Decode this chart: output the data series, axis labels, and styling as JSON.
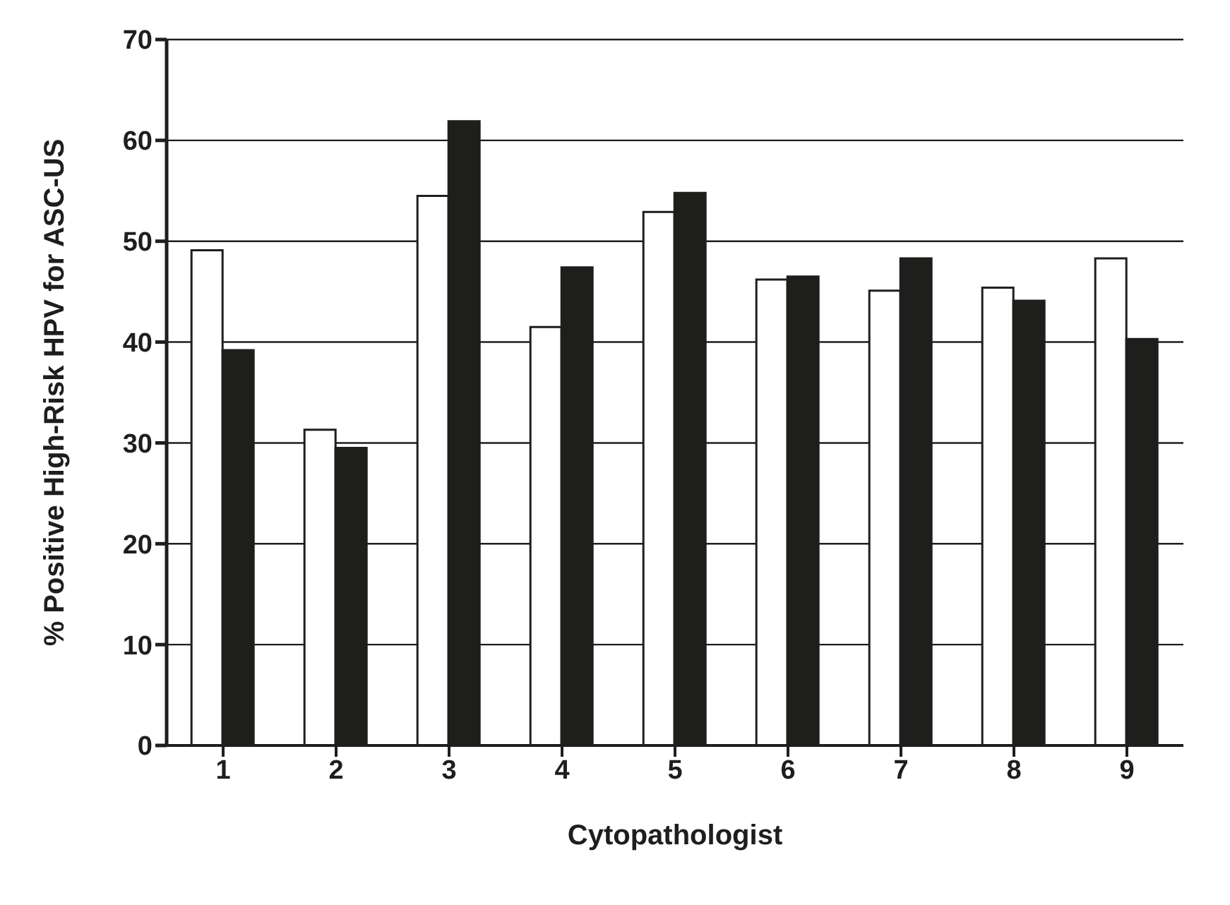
{
  "chart_data": {
    "type": "bar",
    "xlabel": "Cytopathologist",
    "ylabel": "% Positive High-Risk HPV for ASC-US",
    "categories": [
      "1",
      "2",
      "3",
      "4",
      "5",
      "6",
      "7",
      "8",
      "9"
    ],
    "series": [
      {
        "color": "#ffffff",
        "values": [
          49.1,
          31.3,
          54.5,
          41.5,
          52.9,
          46.2,
          45.1,
          45.4,
          48.3
        ]
      },
      {
        "color": "#1e1e1c",
        "values": [
          39.2,
          29.5,
          61.9,
          47.4,
          54.8,
          46.5,
          48.3,
          44.1,
          40.3
        ]
      }
    ],
    "ylim": [
      0,
      70
    ],
    "yticks": [
      0,
      10,
      20,
      30,
      40,
      50,
      60,
      70
    ],
    "grid": "y"
  }
}
